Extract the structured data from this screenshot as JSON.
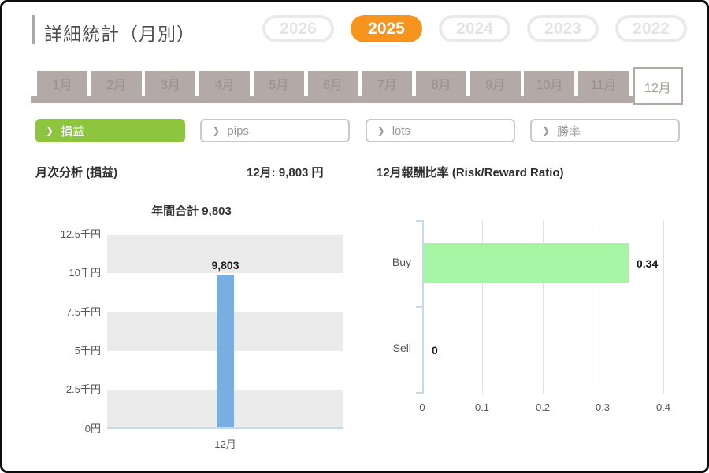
{
  "page": {
    "title": "詳細統計（月別）"
  },
  "icons": {
    "chevron": "❯"
  },
  "years": [
    {
      "label": "2026",
      "active": false
    },
    {
      "label": "2025",
      "active": true
    },
    {
      "label": "2024",
      "active": false
    },
    {
      "label": "2023",
      "active": false
    },
    {
      "label": "2022",
      "active": false
    }
  ],
  "months": [
    {
      "label": "1月"
    },
    {
      "label": "2月"
    },
    {
      "label": "3月"
    },
    {
      "label": "4月"
    },
    {
      "label": "5月"
    },
    {
      "label": "6月"
    },
    {
      "label": "7月"
    },
    {
      "label": "8月"
    },
    {
      "label": "9月"
    },
    {
      "label": "10月"
    },
    {
      "label": "11月"
    },
    {
      "label": "12月",
      "active": true
    }
  ],
  "filters": [
    {
      "label": "損益",
      "active": true
    },
    {
      "label": "pips",
      "active": false
    },
    {
      "label": "lots",
      "active": false
    },
    {
      "label": "勝率",
      "active": false
    }
  ],
  "section": {
    "left_heading": "月次分析 (損益)",
    "month_total": "12月: 9,803 円",
    "right_heading": "12月報酬比率 (Risk/Reward Ratio)"
  },
  "chart_data": [
    {
      "type": "bar",
      "title": "年間合計 9,803",
      "categories": [
        "12月"
      ],
      "values": [
        9803
      ],
      "value_labels": [
        "9,803"
      ],
      "ytick_labels": [
        "12.5千円",
        "10千円",
        "7.5千円",
        "5千円",
        "2.5千円",
        "0円"
      ],
      "ylim": [
        0,
        12500
      ],
      "grid": "alternating horizontal gray bands",
      "bar_color": "#79aee3"
    },
    {
      "type": "bar",
      "orientation": "horizontal",
      "title": "12月報酬比率 (Risk/Reward Ratio)",
      "categories": [
        "Buy",
        "Sell"
      ],
      "values": [
        0.34,
        0
      ],
      "value_labels": [
        "0.34",
        "0"
      ],
      "xtick_labels": [
        "0",
        "0.1",
        "0.2",
        "0.3",
        "0.4"
      ],
      "xlim": [
        0,
        0.45
      ],
      "grid": "vertical gridlines at each 0.1",
      "bar_color": "#a5f5a5"
    }
  ],
  "colors": {
    "accent_orange": "#f7941e",
    "accent_green": "#8dc63e",
    "tab_taupe": "#b3a9a6",
    "bar_blue": "#79aee3",
    "bar_mint": "#a5f5a5",
    "band_gray": "#ebebeb",
    "axis_blue": "#c5d9f1"
  }
}
